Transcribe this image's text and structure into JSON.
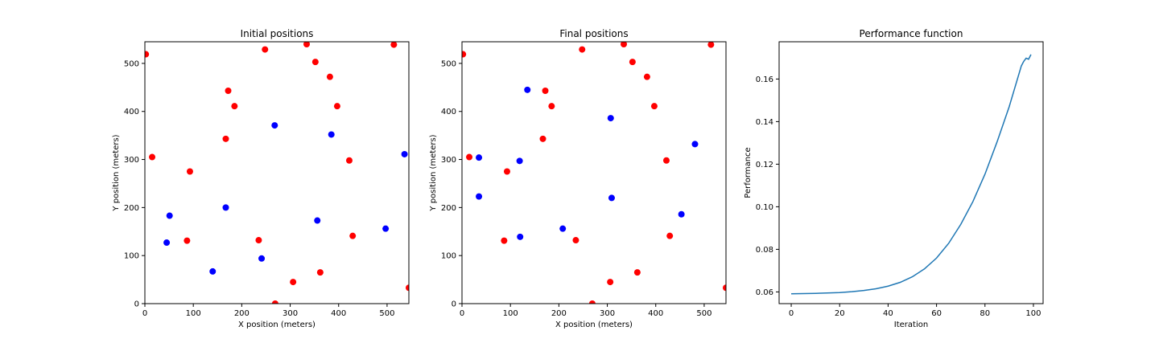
{
  "chart_data": [
    {
      "type": "scatter",
      "title": "Initial positions",
      "xlabel": "X position (meters)",
      "ylabel": "Y position (meters)",
      "xlim": [
        0,
        545
      ],
      "ylim": [
        0,
        545
      ],
      "xticks": [
        0,
        100,
        200,
        300,
        400,
        500
      ],
      "yticks": [
        0,
        100,
        200,
        300,
        400,
        500
      ],
      "grid": false,
      "series": [
        {
          "color": "#ff0000",
          "points": [
            [
              2,
              519
            ],
            [
              15,
              305
            ],
            [
              93,
              275
            ],
            [
              87,
              131
            ],
            [
              172,
              443
            ],
            [
              185,
              411
            ],
            [
              167,
              343
            ],
            [
              248,
              529
            ],
            [
              334,
              540
            ],
            [
              352,
              503
            ],
            [
              382,
              472
            ],
            [
              397,
              411
            ],
            [
              422,
              298
            ],
            [
              429,
              141
            ],
            [
              235,
              132
            ],
            [
              306,
              45
            ],
            [
              362,
              65
            ],
            [
              269,
              0
            ],
            [
              514,
              539
            ],
            [
              545,
              33
            ]
          ]
        },
        {
          "color": "#0000ff",
          "points": [
            [
              268,
              371
            ],
            [
              385,
              352
            ],
            [
              536,
              311
            ],
            [
              51,
              183
            ],
            [
              167,
              200
            ],
            [
              356,
              173
            ],
            [
              45,
              127
            ],
            [
              140,
              67
            ],
            [
              241,
              94
            ],
            [
              497,
              156
            ]
          ]
        }
      ]
    },
    {
      "type": "scatter",
      "title": "Final positions",
      "xlabel": "X position (meters)",
      "ylabel": "Y position (meters)",
      "xlim": [
        0,
        545
      ],
      "ylim": [
        0,
        545
      ],
      "xticks": [
        0,
        100,
        200,
        300,
        400,
        500
      ],
      "yticks": [
        0,
        100,
        200,
        300,
        400,
        500
      ],
      "grid": false,
      "series": [
        {
          "color": "#ff0000",
          "points": [
            [
              2,
              519
            ],
            [
              15,
              305
            ],
            [
              93,
              275
            ],
            [
              87,
              131
            ],
            [
              172,
              443
            ],
            [
              185,
              411
            ],
            [
              167,
              343
            ],
            [
              248,
              529
            ],
            [
              334,
              540
            ],
            [
              352,
              503
            ],
            [
              382,
              472
            ],
            [
              397,
              411
            ],
            [
              422,
              298
            ],
            [
              429,
              141
            ],
            [
              235,
              132
            ],
            [
              306,
              45
            ],
            [
              362,
              65
            ],
            [
              269,
              0
            ],
            [
              514,
              539
            ],
            [
              545,
              33
            ]
          ]
        },
        {
          "color": "#0000ff",
          "points": [
            [
              135,
              445
            ],
            [
              307,
              386
            ],
            [
              481,
              332
            ],
            [
              35,
              304
            ],
            [
              119,
              297
            ],
            [
              35,
              223
            ],
            [
              309,
              220
            ],
            [
              208,
              156
            ],
            [
              453,
              186
            ],
            [
              120,
              139
            ]
          ]
        }
      ]
    },
    {
      "type": "line",
      "title": "Performance function",
      "xlabel": "Iteration",
      "ylabel": "Performance",
      "xlim": [
        -5,
        104
      ],
      "ylim": [
        0.0545,
        0.1775
      ],
      "xticks": [
        0,
        20,
        40,
        60,
        80,
        100
      ],
      "yticks": [
        0.06,
        0.08,
        0.1,
        0.12,
        0.14,
        0.16
      ],
      "ytick_labels": [
        "0.06",
        "0.08",
        "0.10",
        "0.12",
        "0.14",
        "0.16"
      ],
      "grid": false,
      "series": [
        {
          "color": "#1f77b4",
          "x": [
            0,
            10,
            20,
            25,
            30,
            35,
            40,
            45,
            50,
            55,
            60,
            65,
            70,
            75,
            80,
            85,
            90,
            95,
            96,
            97,
            98,
            99
          ],
          "y": [
            0.0591,
            0.0593,
            0.0597,
            0.0601,
            0.0607,
            0.0615,
            0.0627,
            0.0645,
            0.0671,
            0.0708,
            0.0759,
            0.0828,
            0.0917,
            0.1024,
            0.1153,
            0.1305,
            0.147,
            0.1661,
            0.1683,
            0.1698,
            0.1693,
            0.1715
          ]
        }
      ]
    }
  ]
}
